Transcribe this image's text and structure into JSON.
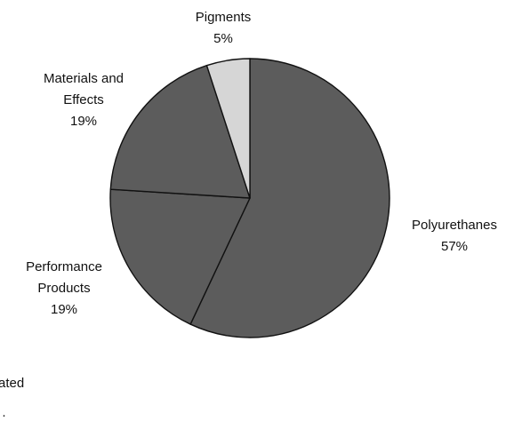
{
  "chart_data": {
    "type": "pie",
    "slices": [
      {
        "name": "Polyurethanes",
        "value": 57,
        "label": "57%",
        "color": "#5c5c5c"
      },
      {
        "name": "Performance Products",
        "value": 19,
        "label": "19%",
        "color": "#5c5c5c"
      },
      {
        "name": "Materials and Effects",
        "value": 19,
        "label": "19%",
        "color": "#5c5c5c"
      },
      {
        "name": "Pigments",
        "value": 5,
        "label": "5%",
        "color": "#d6d6d6"
      }
    ],
    "slice_labels": {
      "pigments": [
        "Pigments",
        "5%"
      ],
      "materials": [
        "Materials and",
        "Effects",
        "19%"
      ],
      "polyurethanes": [
        "Polyurethanes",
        "57%"
      ],
      "performance": [
        "Performance",
        "Products",
        "19%"
      ]
    },
    "outline_color": "#111111"
  },
  "fragments": {
    "cut_text_1": "ated",
    "cut_text_2": "·"
  }
}
